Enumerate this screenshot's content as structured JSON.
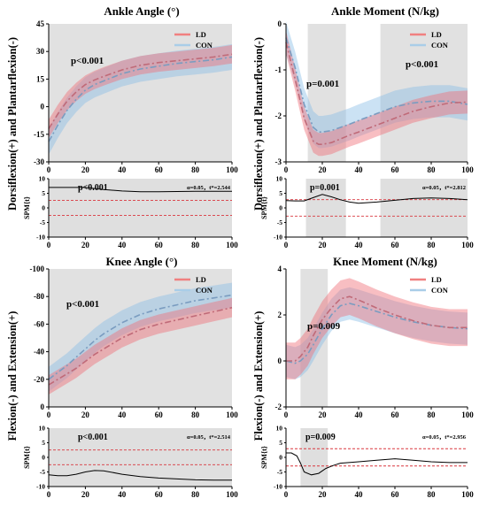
{
  "figure": {
    "ylabel_top": "Dorsiflexion(+) and Plantarflexion(-)",
    "ylabel_bottom": "Flexion(-) and Extension(+)",
    "legend": [
      {
        "label": "LD",
        "color": "#f08080"
      },
      {
        "label": "CON",
        "color": "#a9cde8"
      }
    ],
    "spm_ylabel": "SPM{t}"
  },
  "chart_data": [
    {
      "id": "ankle_angle",
      "type": "line",
      "title": "Ankle Angle (°)",
      "x": [
        0,
        5,
        10,
        15,
        20,
        25,
        30,
        40,
        50,
        60,
        70,
        80,
        90,
        100
      ],
      "xlim": [
        0,
        100
      ],
      "xticks": [
        0,
        20,
        40,
        60,
        80,
        100
      ],
      "ylim": [
        -30,
        45
      ],
      "yticks": [
        -30,
        -15,
        0,
        15,
        30,
        45
      ],
      "shading": [
        [
          0,
          100
        ]
      ],
      "annotation": "p<0.001",
      "series": [
        {
          "name": "LD",
          "mean": [
            -12,
            -4,
            3,
            8,
            12,
            14.5,
            16.5,
            20,
            22.5,
            24,
            25,
            26,
            27,
            28.5
          ],
          "sd": 5
        },
        {
          "name": "CON",
          "mean": [
            -19,
            -10,
            -2,
            4,
            9,
            12,
            14,
            18,
            20.5,
            22,
            23.5,
            24.5,
            25.5,
            27
          ],
          "sd": 7
        }
      ],
      "spm": {
        "x": [
          0,
          10,
          20,
          30,
          40,
          50,
          60,
          70,
          80,
          90,
          100
        ],
        "t": [
          7,
          7,
          7,
          6.3,
          5.8,
          5.5,
          5.5,
          5.6,
          5.7,
          5.7,
          5.7
        ],
        "ylim": [
          -10,
          10
        ],
        "yticks": [
          -10,
          -5,
          0,
          5,
          10
        ],
        "threshold": 2.544,
        "annotation": "p<0.001",
        "alpha_text": "α=0.05，t*=2.544",
        "shading": [
          [
            0,
            100
          ]
        ]
      }
    },
    {
      "id": "ankle_moment",
      "type": "line",
      "title": "Ankle Moment (N/kg)",
      "x": [
        0,
        5,
        10,
        15,
        18,
        20,
        25,
        30,
        35,
        40,
        50,
        60,
        70,
        80,
        90,
        100
      ],
      "xlim": [
        0,
        100
      ],
      "xticks": [
        0,
        20,
        40,
        60,
        80,
        100
      ],
      "ylim": [
        -3,
        0
      ],
      "yticks": [
        -3,
        -2,
        -1,
        0
      ],
      "shading": [
        [
          12,
          33
        ],
        [
          52,
          100
        ]
      ],
      "annotation": [
        "p=0.001",
        "p<0.001"
      ],
      "series": [
        {
          "name": "LD",
          "mean": [
            -0.4,
            -1.2,
            -2.05,
            -2.55,
            -2.62,
            -2.62,
            -2.58,
            -2.5,
            -2.42,
            -2.35,
            -2.2,
            -2.05,
            -1.9,
            -1.8,
            -1.72,
            -1.7
          ],
          "sd": 0.25
        },
        {
          "name": "CON",
          "mean": [
            -0.3,
            -0.95,
            -1.75,
            -2.25,
            -2.35,
            -2.35,
            -2.32,
            -2.25,
            -2.18,
            -2.1,
            -1.95,
            -1.8,
            -1.72,
            -1.68,
            -1.68,
            -1.75
          ],
          "sd": 0.35
        }
      ],
      "spm": {
        "x": [
          0,
          5,
          10,
          15,
          20,
          25,
          30,
          35,
          40,
          50,
          60,
          70,
          80,
          90,
          100
        ],
        "t": [
          2.5,
          2.4,
          2.4,
          3.5,
          4.6,
          3.8,
          2.8,
          2,
          1.6,
          2,
          2.6,
          3.2,
          3.4,
          3.2,
          2.8
        ],
        "ylim": [
          -10,
          10
        ],
        "yticks": [
          -10,
          -5,
          0,
          5,
          10
        ],
        "threshold": 2.812,
        "annotation": "p=0.001",
        "alpha_text": "α=0.05，t*=2.812",
        "shading": [
          [
            11,
            33
          ],
          [
            52,
            100
          ]
        ]
      }
    },
    {
      "id": "knee_angle",
      "type": "line",
      "title": "Knee Angle (°)",
      "x": [
        0,
        5,
        10,
        15,
        20,
        25,
        30,
        40,
        50,
        60,
        70,
        80,
        90,
        100
      ],
      "xlim": [
        0,
        100
      ],
      "xticks": [
        0,
        20,
        40,
        60,
        80,
        100
      ],
      "ylim": [
        -100,
        0
      ],
      "yticks": [
        0,
        -20,
        -40,
        -60,
        -80,
        -100
      ],
      "reversed_y": true,
      "shading": [
        [
          0,
          100
        ]
      ],
      "annotation": "p<0.001",
      "series": [
        {
          "name": "LD",
          "mean": [
            -16,
            -20,
            -24,
            -28,
            -33,
            -38,
            -42,
            -50,
            -56,
            -60,
            -63,
            -66,
            -69,
            -72
          ],
          "sd": 7
        },
        {
          "name": "CON",
          "mean": [
            -20,
            -25,
            -30,
            -36,
            -42,
            -48,
            -53,
            -61,
            -67,
            -71,
            -74,
            -77,
            -79,
            -81
          ],
          "sd": 9
        }
      ],
      "spm": {
        "x": [
          0,
          5,
          10,
          15,
          20,
          25,
          30,
          40,
          50,
          60,
          70,
          80,
          90,
          100
        ],
        "t": [
          -6,
          -6.3,
          -6.3,
          -5.8,
          -5,
          -4.5,
          -4.6,
          -5.8,
          -6.6,
          -7.1,
          -7.4,
          -7.7,
          -7.8,
          -7.8
        ],
        "ylim": [
          -10,
          10
        ],
        "yticks": [
          -10,
          -5,
          0,
          5,
          10
        ],
        "threshold": 2.514,
        "annotation": "p<0.001",
        "alpha_text": "α=0.05，t*=2.514",
        "shading": [
          [
            0,
            100
          ]
        ]
      }
    },
    {
      "id": "knee_moment",
      "type": "line",
      "title": "Knee Moment (N/kg)",
      "x": [
        0,
        5,
        8,
        12,
        15,
        20,
        25,
        30,
        35,
        40,
        50,
        60,
        70,
        80,
        90,
        100
      ],
      "xlim": [
        0,
        100
      ],
      "xticks": [
        0,
        20,
        40,
        60,
        80,
        100
      ],
      "ylim": [
        -2,
        4
      ],
      "yticks": [
        -2,
        0,
        2,
        4
      ],
      "shading": [
        [
          8,
          23
        ]
      ],
      "annotation": "p=0.009",
      "series": [
        {
          "name": "LD",
          "mean": [
            0,
            0,
            0.2,
            0.6,
            1.1,
            1.8,
            2.3,
            2.7,
            2.8,
            2.65,
            2.3,
            2,
            1.75,
            1.55,
            1.45,
            1.45
          ],
          "sd": 0.8
        },
        {
          "name": "CON",
          "mean": [
            0,
            -0.1,
            0,
            0.3,
            0.7,
            1.4,
            2,
            2.4,
            2.5,
            2.4,
            2.15,
            1.9,
            1.7,
            1.55,
            1.45,
            1.4
          ],
          "sd": 0.7
        }
      ],
      "spm": {
        "x": [
          0,
          3,
          6,
          8,
          10,
          14,
          18,
          22,
          26,
          30,
          40,
          50,
          60,
          70,
          80,
          90,
          100
        ],
        "t": [
          1.5,
          1.5,
          0.5,
          -2,
          -5,
          -6,
          -5.5,
          -3.8,
          -2.8,
          -2,
          -1.5,
          -1,
          -0.5,
          -1,
          -1.5,
          -1.8,
          -1.8
        ],
        "ylim": [
          -10,
          10
        ],
        "yticks": [
          -10,
          -5,
          0,
          5,
          10
        ],
        "threshold": 2.956,
        "annotation": "p=0.009",
        "alpha_text": "α=0.05，t*=2.956",
        "shading": [
          [
            8,
            23
          ]
        ]
      }
    }
  ]
}
